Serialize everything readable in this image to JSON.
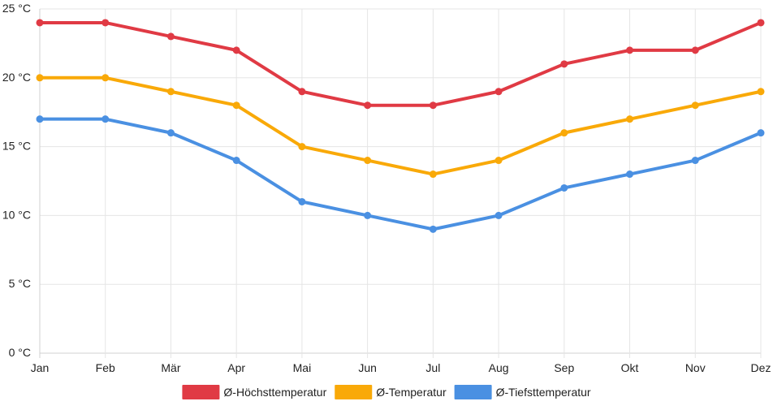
{
  "chart_data": {
    "type": "line",
    "title": "",
    "xlabel": "",
    "ylabel": "",
    "categories": [
      "Jan",
      "Feb",
      "Mär",
      "Apr",
      "Mai",
      "Jun",
      "Jul",
      "Aug",
      "Sep",
      "Okt",
      "Nov",
      "Dez"
    ],
    "ylim": [
      0,
      25
    ],
    "y_ticks": [
      0,
      5,
      10,
      15,
      20,
      25
    ],
    "y_tick_labels": [
      "0 °C",
      "5 °C",
      "10 °C",
      "15 °C",
      "20 °C",
      "25 °C"
    ],
    "grid": true,
    "legend_position": "bottom-center",
    "series": [
      {
        "name": "Ø-Höchsttemperatur",
        "color": "#e03a44",
        "values": [
          24,
          24,
          23,
          22,
          19,
          18,
          18,
          19,
          21,
          22,
          22,
          24
        ]
      },
      {
        "name": "Ø-Temperatur",
        "color": "#f9a908",
        "values": [
          20,
          20,
          19,
          18,
          15,
          14,
          13,
          14,
          16,
          17,
          18,
          19
        ]
      },
      {
        "name": "Ø-Tiefsttemperatur",
        "color": "#4a90e2",
        "values": [
          17,
          17,
          16,
          14,
          11,
          10,
          9,
          10,
          12,
          13,
          14,
          16
        ]
      }
    ]
  }
}
